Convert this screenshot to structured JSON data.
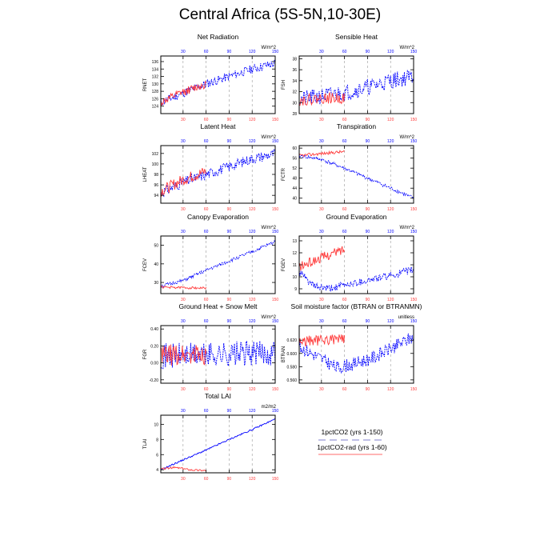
{
  "title": "Central Africa (5S-5N,10-30E)",
  "colors": {
    "blue": "#0000ff",
    "red": "#ff3b3b",
    "grid": "#999999",
    "axis": "#000000"
  },
  "legend": {
    "entries": [
      {
        "label": "1pctCO2 (yrs 1-150)",
        "color": "#aaaadd",
        "dash": true
      },
      {
        "label": "1pctCO2-rad (yrs 1-60)",
        "color": "#ff6b6b",
        "dash": false
      }
    ]
  },
  "chart_data": [
    {
      "type": "line",
      "title": "Net Radiation",
      "ylabel": "RNET",
      "units": "W/m^2",
      "xlim": [
        1,
        150
      ],
      "ylim": [
        122,
        137.5
      ],
      "yticks": [
        124,
        126,
        128,
        130,
        132,
        134,
        136
      ],
      "blue_xticks": [
        30,
        60,
        90,
        120,
        150
      ],
      "red_xticks": [
        30,
        60,
        90,
        120,
        150
      ],
      "series": [
        {
          "color": "blue",
          "style": "dashed",
          "anchors": [
            [
              1,
              125
            ],
            [
              30,
              127.5
            ],
            [
              60,
              130
            ],
            [
              90,
              132
            ],
            [
              120,
              134
            ],
            [
              150,
              135.5
            ]
          ],
          "noise": 1.2,
          "seed": 11
        },
        {
          "color": "red",
          "style": "solid",
          "anchors": [
            [
              1,
              125
            ],
            [
              30,
              127.8
            ],
            [
              60,
              130
            ]
          ],
          "noise": 1.1,
          "seed": 12
        }
      ]
    },
    {
      "type": "line",
      "title": "Sensible Heat",
      "ylabel": "FSH",
      "units": "W/m^2",
      "xlim": [
        1,
        150
      ],
      "ylim": [
        28,
        38.5
      ],
      "yticks": [
        28.0,
        30.0,
        32.0,
        34.0,
        36.0,
        38.0
      ],
      "blue_xticks": [
        30,
        60,
        90,
        120,
        150
      ],
      "red_xticks": [
        30,
        60,
        90,
        120,
        150
      ],
      "series": [
        {
          "color": "blue",
          "style": "dashed",
          "anchors": [
            [
              1,
              30.5
            ],
            [
              30,
              31.2
            ],
            [
              60,
              31.8
            ],
            [
              90,
              32.8
            ],
            [
              120,
              34
            ],
            [
              150,
              34.8
            ]
          ],
          "noise": 1.5,
          "seed": 21
        },
        {
          "color": "red",
          "style": "solid",
          "anchors": [
            [
              1,
              30.4
            ],
            [
              30,
              30.8
            ],
            [
              60,
              30.8
            ]
          ],
          "noise": 1.0,
          "seed": 22
        }
      ]
    },
    {
      "type": "line",
      "title": "Latent Heat",
      "ylabel": "LHEAT",
      "units": "W/m^2",
      "xlim": [
        1,
        150
      ],
      "ylim": [
        92.5,
        103.5
      ],
      "yticks": [
        94,
        96,
        98,
        100,
        102
      ],
      "blue_xticks": [
        30,
        60,
        90,
        120,
        150
      ],
      "red_xticks": [
        30,
        60,
        90,
        120,
        150
      ],
      "series": [
        {
          "color": "blue",
          "style": "dashed",
          "anchors": [
            [
              1,
              94.5
            ],
            [
              30,
              96.5
            ],
            [
              60,
              98
            ],
            [
              90,
              99.5
            ],
            [
              120,
              101
            ],
            [
              150,
              102
            ]
          ],
          "noise": 1.0,
          "seed": 31
        },
        {
          "color": "red",
          "style": "solid",
          "anchors": [
            [
              1,
              94.8
            ],
            [
              30,
              97
            ],
            [
              60,
              98.6
            ]
          ],
          "noise": 1.1,
          "seed": 32
        }
      ]
    },
    {
      "type": "line",
      "title": "Transpiration",
      "ylabel": "FCTR",
      "units": "W/m^2",
      "xlim": [
        1,
        150
      ],
      "ylim": [
        38,
        61
      ],
      "yticks": [
        40.0,
        44.0,
        48.0,
        52.0,
        56.0,
        60.0
      ],
      "blue_xticks": [
        30,
        60,
        90,
        120,
        150
      ],
      "red_xticks": [
        30,
        60,
        90,
        120,
        150
      ],
      "series": [
        {
          "color": "blue",
          "style": "dashed",
          "anchors": [
            [
              1,
              57
            ],
            [
              30,
              55.5
            ],
            [
              60,
              52
            ],
            [
              90,
              48
            ],
            [
              120,
              44
            ],
            [
              150,
              40
            ]
          ],
          "noise": 0.7,
          "seed": 41
        },
        {
          "color": "red",
          "style": "solid",
          "anchors": [
            [
              1,
              57
            ],
            [
              30,
              57.8
            ],
            [
              60,
              58.6
            ]
          ],
          "noise": 0.6,
          "seed": 42
        }
      ]
    },
    {
      "type": "line",
      "title": "Canopy Evaporation",
      "ylabel": "FCEV",
      "units": "W/m^2",
      "xlim": [
        1,
        150
      ],
      "ylim": [
        24,
        55
      ],
      "yticks": [
        30,
        40,
        50
      ],
      "blue_xticks": [
        30,
        60,
        90,
        120,
        150
      ],
      "red_xticks": [
        30,
        60,
        90,
        120,
        150
      ],
      "series": [
        {
          "color": "blue",
          "style": "dashed",
          "anchors": [
            [
              1,
              28
            ],
            [
              30,
              31
            ],
            [
              60,
              36.5
            ],
            [
              90,
              41.5
            ],
            [
              120,
              46.5
            ],
            [
              150,
              52
            ]
          ],
          "noise": 0.9,
          "seed": 51
        },
        {
          "color": "red",
          "style": "solid",
          "anchors": [
            [
              1,
              27.5
            ],
            [
              30,
              27.2
            ],
            [
              60,
              27
            ]
          ],
          "noise": 0.6,
          "seed": 52
        }
      ]
    },
    {
      "type": "line",
      "title": "Ground Evaporation",
      "ylabel": "FGEV",
      "units": "W/m^2",
      "xlim": [
        1,
        150
      ],
      "ylim": [
        8.6,
        13.4
      ],
      "yticks": [
        9.0,
        10.0,
        11.0,
        12.0,
        13.0
      ],
      "blue_xticks": [
        30,
        60,
        90,
        120,
        150
      ],
      "red_xticks": [
        30,
        60,
        90,
        120,
        150
      ],
      "series": [
        {
          "color": "blue",
          "style": "dashed",
          "anchors": [
            [
              1,
              10.4
            ],
            [
              20,
              9.2
            ],
            [
              40,
              9.0
            ],
            [
              60,
              9.3
            ],
            [
              90,
              9.7
            ],
            [
              120,
              10.1
            ],
            [
              150,
              10.6
            ]
          ],
          "noise": 0.3,
          "seed": 61
        },
        {
          "color": "red",
          "style": "solid",
          "anchors": [
            [
              1,
              10.8
            ],
            [
              30,
              11.6
            ],
            [
              60,
              12.3
            ]
          ],
          "noise": 0.4,
          "seed": 62
        }
      ]
    },
    {
      "type": "line",
      "title": "Ground Heat + Snow Melt",
      "ylabel": "FGR",
      "units": "W/m^2",
      "xlim": [
        1,
        150
      ],
      "ylim": [
        -0.24,
        0.44
      ],
      "yticks": [
        -0.2,
        0.0,
        0.2,
        0.4
      ],
      "ytick_labels": [
        "-0.20",
        "0.00",
        "0.20",
        "0.40"
      ],
      "blue_xticks": [
        30,
        60,
        90,
        120,
        150
      ],
      "red_xticks": [
        30,
        60,
        90,
        120,
        150
      ],
      "series": [
        {
          "color": "blue",
          "style": "dashed",
          "anchors": [
            [
              1,
              0.08
            ],
            [
              75,
              0.1
            ],
            [
              150,
              0.12
            ]
          ],
          "noise": 0.15,
          "seed": 71
        },
        {
          "color": "red",
          "style": "solid",
          "anchors": [
            [
              1,
              0.08
            ],
            [
              30,
              0.1
            ],
            [
              60,
              0.1
            ]
          ],
          "noise": 0.13,
          "seed": 72
        }
      ]
    },
    {
      "type": "line",
      "title": "Soil moisture factor (BTRAN or BTRANMN)",
      "ylabel": "BTRAN",
      "units": "unitless",
      "xlim": [
        1,
        150
      ],
      "ylim": [
        0.555,
        0.642
      ],
      "yticks": [
        0.56,
        0.58,
        0.6,
        0.62
      ],
      "ytick_labels": [
        "0.560",
        "0.580",
        "0.600",
        "0.620"
      ],
      "blue_xticks": [
        30,
        60,
        90,
        120,
        150
      ],
      "red_xticks": [
        30,
        60,
        90,
        120,
        150
      ],
      "series": [
        {
          "color": "blue",
          "style": "dashed",
          "anchors": [
            [
              1,
              0.61
            ],
            [
              25,
              0.595
            ],
            [
              50,
              0.578
            ],
            [
              75,
              0.585
            ],
            [
              100,
              0.595
            ],
            [
              125,
              0.61
            ],
            [
              150,
              0.625
            ]
          ],
          "noise": 0.01,
          "seed": 81
        },
        {
          "color": "red",
          "style": "solid",
          "anchors": [
            [
              1,
              0.618
            ],
            [
              30,
              0.62
            ],
            [
              60,
              0.622
            ]
          ],
          "noise": 0.008,
          "seed": 82
        }
      ]
    },
    {
      "type": "line",
      "title": "Total LAI",
      "ylabel": "TLAI",
      "units": "m2/m2",
      "xlim": [
        1,
        150
      ],
      "ylim": [
        3.6,
        11.2
      ],
      "yticks": [
        4,
        6,
        8,
        10
      ],
      "blue_xticks": [
        30,
        60,
        90,
        120,
        150
      ],
      "red_xticks": [
        30,
        60,
        90,
        120,
        150
      ],
      "series": [
        {
          "color": "blue",
          "style": "solid",
          "anchors": [
            [
              1,
              4
            ],
            [
              30,
              5.3
            ],
            [
              60,
              6.6
            ],
            [
              90,
              8
            ],
            [
              120,
              9.3
            ],
            [
              150,
              10.7
            ]
          ],
          "noise": 0.1,
          "seed": 91
        },
        {
          "color": "red",
          "style": "solid",
          "anchors": [
            [
              1,
              4.1
            ],
            [
              20,
              4.3
            ],
            [
              40,
              4
            ],
            [
              60,
              3.9
            ]
          ],
          "noise": 0.12,
          "seed": 92
        }
      ]
    }
  ]
}
